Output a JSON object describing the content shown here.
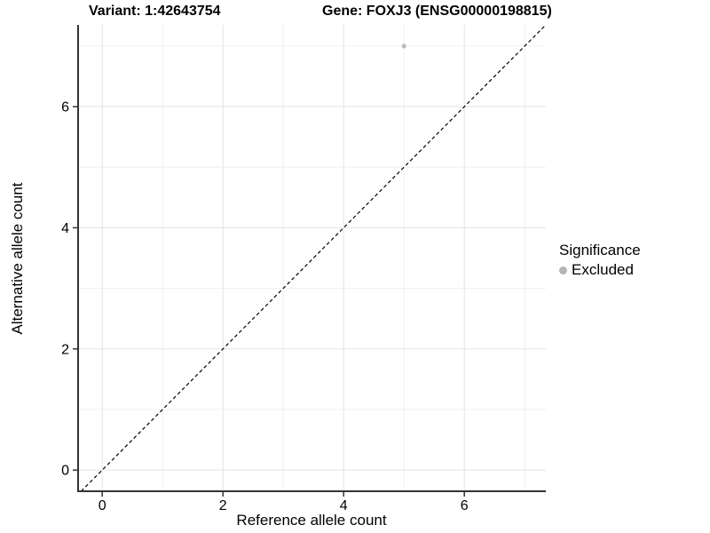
{
  "chart_data": {
    "type": "scatter",
    "title_variant": "Variant: 1:42643754",
    "title_gene": "Gene: FOXJ3 (ENSG00000198815)",
    "xlabel": "Reference allele count",
    "ylabel": "Alternative allele count",
    "xlim": [
      -0.4,
      7.35
    ],
    "ylim": [
      -0.35,
      7.35
    ],
    "xticks": [
      0,
      2,
      4,
      6
    ],
    "yticks": [
      0,
      2,
      4,
      6
    ],
    "grid_lines_x": [
      0,
      1,
      2,
      3,
      4,
      5,
      6,
      7
    ],
    "grid_lines_y": [
      0,
      1,
      2,
      3,
      4,
      5,
      6,
      7
    ],
    "grid_on": true,
    "identity_line": {
      "equation": "y = x",
      "style": "dashed",
      "color": "#000000"
    },
    "series": [
      {
        "name": "Excluded",
        "color": "#bcbcbc",
        "points": [
          {
            "x": 5,
            "y": 7
          }
        ]
      }
    ],
    "legend": {
      "title": "Significance",
      "position": "right",
      "items": [
        {
          "label": "Excluded",
          "color": "#b5b5b5"
        }
      ]
    },
    "colors": {
      "background": "#ffffff",
      "grid_major": "#e3e3e3",
      "grid_minor": "#efefef",
      "axis": "#333333",
      "tick": "#333333",
      "text": "#000000",
      "point": "#bcbcbc"
    }
  }
}
